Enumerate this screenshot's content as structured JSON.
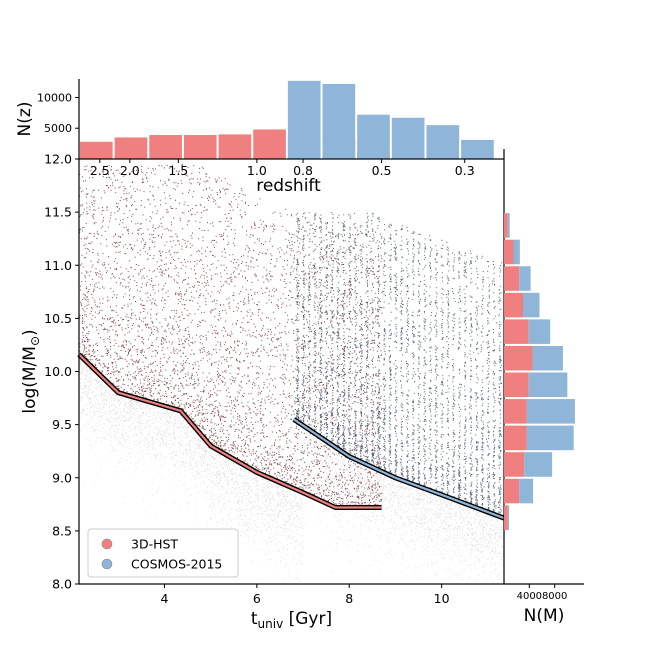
{
  "chart_data": [
    {
      "name": "main-scatter",
      "type": "scatter",
      "xlabel_main": "t",
      "xlabel_sub": "univ",
      "xlabel_unit": " [Gyr]",
      "ylabel": "log(M/M",
      "ylabel_symbol": "⊙",
      "ylabel_close": ")",
      "xlim": [
        2.15,
        11.35
      ],
      "ylim": [
        8.0,
        12.0
      ],
      "x_ticks": [
        4,
        6,
        8,
        10
      ],
      "x_tick_labels": [
        "4",
        "6",
        "8",
        "10"
      ],
      "y_ticks": [
        8.0,
        8.5,
        9.0,
        9.5,
        10.0,
        10.5,
        11.0,
        11.5,
        12.0
      ],
      "y_tick_labels": [
        "8.0",
        "8.5",
        "9.0",
        "9.5",
        "10.0",
        "10.5",
        "11.0",
        "11.5",
        "12.0"
      ],
      "top_axis": {
        "label": "redshift",
        "ticks": [
          {
            "z": "2.5",
            "t": 2.6
          },
          {
            "z": "2.0",
            "t": 3.25
          },
          {
            "z": "1.5",
            "t": 4.3
          },
          {
            "z": "1.0",
            "t": 6.0
          },
          {
            "z": "0.8",
            "t": 7.0
          },
          {
            "z": "0.5",
            "t": 8.7
          },
          {
            "z": "0.3",
            "t": 10.5
          }
        ]
      },
      "series": [
        {
          "name": "3D-HST",
          "color": "#f08080",
          "point_color": "#5a0d0d",
          "t_range": [
            2.15,
            8.7
          ],
          "completeness_limit": [
            [
              2.15,
              10.16
            ],
            [
              3.0,
              9.8
            ],
            [
              4.35,
              9.63
            ],
            [
              5.0,
              9.3
            ],
            [
              6.0,
              9.05
            ],
            [
              7.0,
              8.86
            ],
            [
              7.7,
              8.72
            ],
            [
              8.7,
              8.72
            ]
          ]
        },
        {
          "name": "COSMOS-2015",
          "color": "#8fb6d9",
          "point_color": "#14283d",
          "t_range": [
            6.8,
            11.35
          ],
          "completeness_limit": [
            [
              6.8,
              9.55
            ],
            [
              8.0,
              9.2
            ],
            [
              9.0,
              9.0
            ],
            [
              10.0,
              8.84
            ],
            [
              11.35,
              8.62
            ]
          ]
        }
      ],
      "legend": {
        "position": "lower-left",
        "entries": [
          "3D-HST",
          "COSMOS-2015"
        ]
      }
    },
    {
      "name": "redshift-histogram",
      "type": "bar",
      "ylabel": "N(z)",
      "ylim": [
        0,
        13000
      ],
      "y_ticks": [
        5000,
        10000
      ],
      "y_tick_labels": [
        "5000",
        "10000"
      ],
      "bin_edges_t": [
        2.15,
        2.9,
        3.65,
        4.4,
        5.15,
        5.9,
        6.65,
        7.4,
        8.15,
        8.9,
        9.65,
        10.4,
        11.15
      ],
      "series": [
        {
          "name": "3D-HST",
          "color": "#f08080",
          "values": [
            2800,
            3500,
            3900,
            3900,
            4000,
            4800,
            4000,
            3200,
            1200,
            0,
            0,
            0
          ]
        },
        {
          "name": "COSMOS-2015",
          "color": "#8fb6d9",
          "values": [
            0,
            0,
            0,
            0,
            0,
            0,
            12700,
            12200,
            7200,
            6700,
            5500,
            3100
          ]
        }
      ]
    },
    {
      "name": "mass-histogram",
      "type": "bar",
      "orientation": "horizontal",
      "xlabel": "N(M)",
      "x_ticks": [
        4000,
        8000
      ],
      "x_tick_labels": [
        "4000",
        "8000"
      ],
      "xlim": [
        0,
        12000
      ],
      "bin_edges_logM": [
        8.5,
        8.75,
        9.0,
        9.25,
        9.5,
        9.75,
        10.0,
        10.25,
        10.5,
        10.75,
        11.0,
        11.25,
        11.5
      ],
      "series": [
        {
          "name": "3D-HST",
          "color": "#f08080",
          "values": [
            600,
            2400,
            3200,
            3600,
            3600,
            3900,
            4500,
            3900,
            3000,
            2400,
            1500,
            600
          ]
        },
        {
          "name": "COSMOS-2015",
          "color": "#8fb6d9",
          "values": [
            200,
            2200,
            4400,
            7400,
            7600,
            6100,
            4800,
            3400,
            2600,
            1800,
            1000,
            300
          ]
        }
      ]
    }
  ]
}
